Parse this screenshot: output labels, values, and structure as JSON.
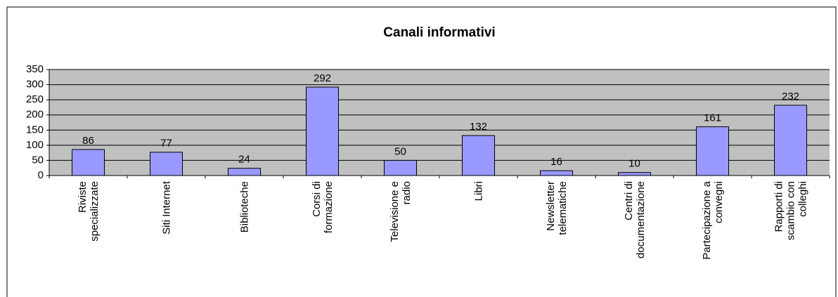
{
  "chart_data": {
    "type": "bar",
    "title": "Canali informativi",
    "categories": [
      "Riviste specializzate",
      "Siti Internet",
      "Biblioteche",
      "Corsi di formazione",
      "Televisione e radio",
      "Libri",
      "Newsletter telematiche",
      "Centri di documentazione",
      "Partecipazione a convegni",
      "Rapporti di scambio con colleghi"
    ],
    "values": [
      86,
      77,
      24,
      292,
      50,
      132,
      16,
      10,
      161,
      232
    ],
    "color": "#9999ff",
    "ylim": [
      0,
      350
    ],
    "yticks": [
      0,
      50,
      100,
      150,
      200,
      250,
      300,
      350
    ],
    "grid": true
  }
}
